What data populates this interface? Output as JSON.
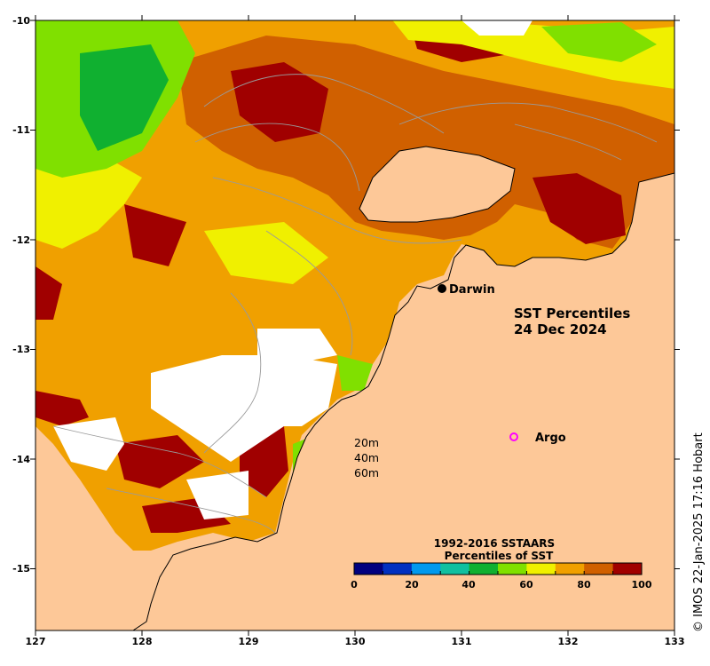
{
  "map": {
    "title_line1": "SST Percentiles",
    "title_line2": "24 Dec 2024",
    "credit": "© IMOS 22-Jan-2025 17:16 Hobart",
    "land_color": "#fdc898",
    "x_ticks": [
      "127",
      "128",
      "129",
      "130",
      "131",
      "132",
      "133"
    ],
    "y_ticks": [
      "-10",
      "-11",
      "-12",
      "-13",
      "-14",
      "-15"
    ],
    "places": [
      {
        "name": "Darwin",
        "lon": 130.84,
        "lat": -12.46,
        "marker": "filled-dot"
      },
      {
        "name": "Argo",
        "lon": 131.48,
        "lat": -13.81,
        "marker": "magenta-ring"
      }
    ],
    "depth_legend": [
      "20m",
      "40m",
      "60m"
    ],
    "colorbar": {
      "title_line1": "1992-2016 SSTAARS",
      "title_line2": "Percentiles of SST",
      "ticks": [
        "0",
        "20",
        "40",
        "60",
        "80",
        "100"
      ],
      "colors": [
        "#00007f",
        "#0030c0",
        "#0099ee",
        "#10c0a0",
        "#10b030",
        "#80e000",
        "#f0f000",
        "#f0a000",
        "#d06000",
        "#a00000"
      ]
    }
  }
}
